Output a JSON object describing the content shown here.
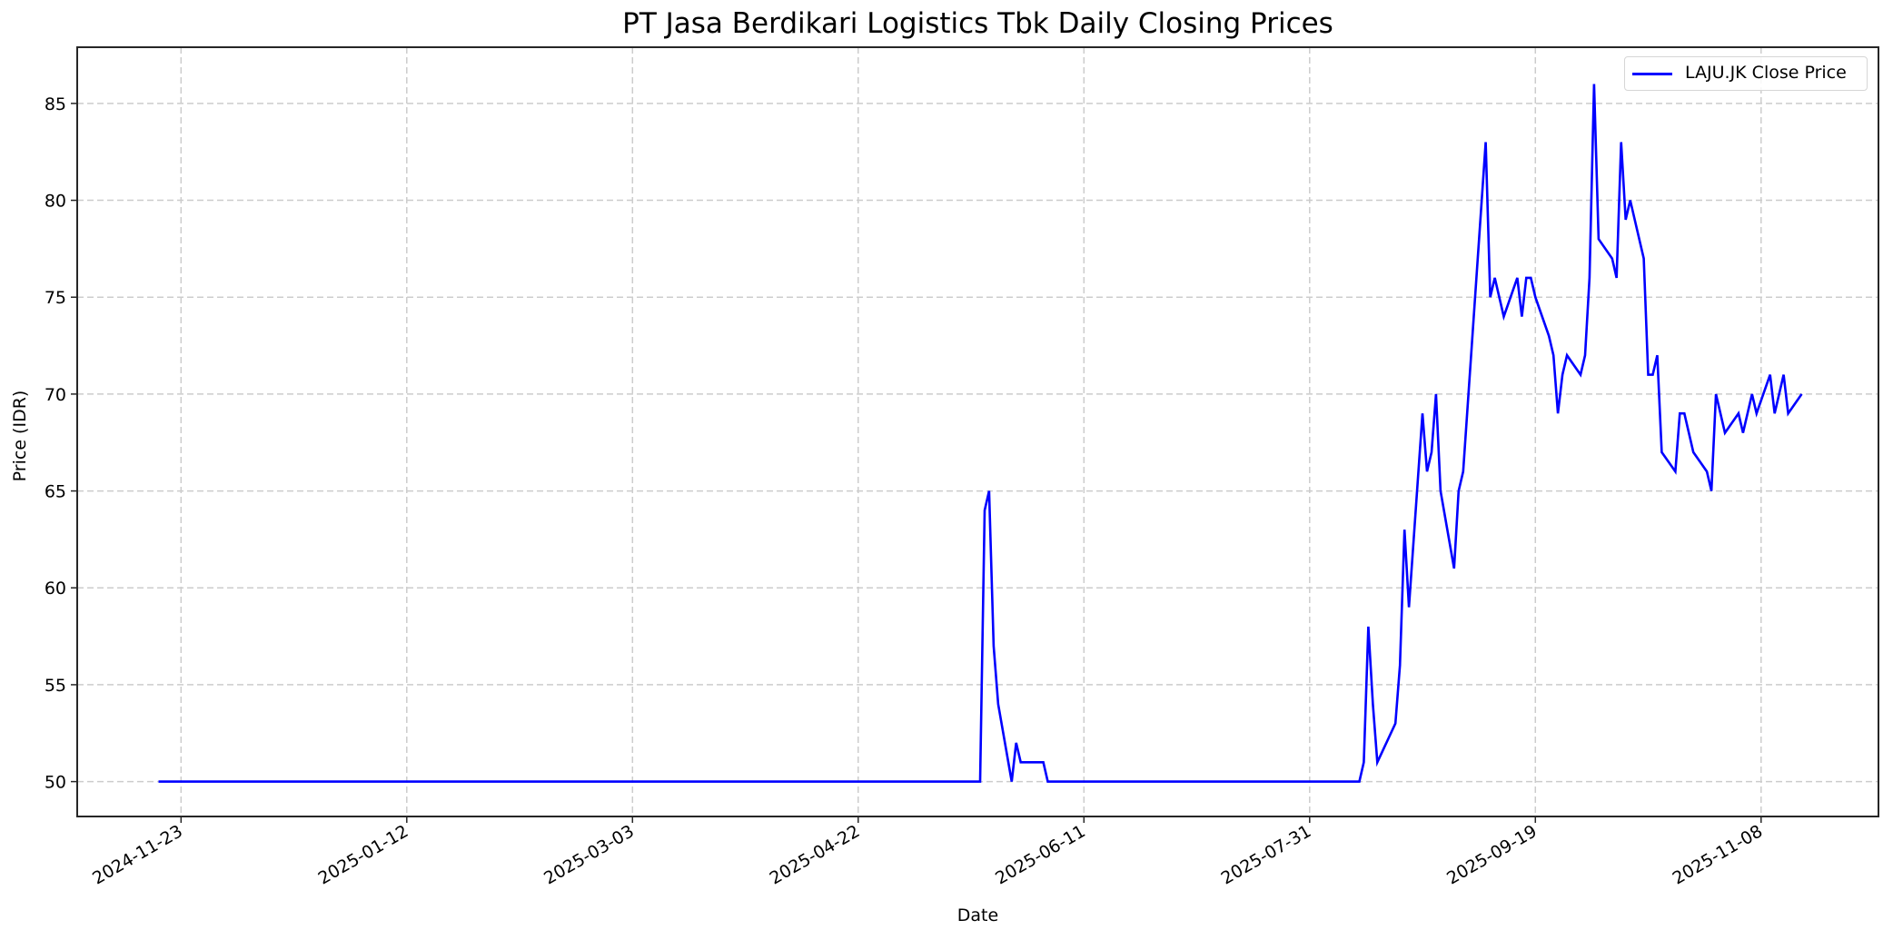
{
  "chart_data": {
    "type": "line",
    "title": "PT Jasa Berdikari Logistics Tbk Daily Closing Prices",
    "xlabel": "Date",
    "ylabel": "Price (IDR)",
    "grid": true,
    "legend_position": "upper right",
    "xlim": [
      "2024-10-31",
      "2025-12-04"
    ],
    "ylim": [
      48.2,
      87.9
    ],
    "x_ticks": [
      "2024-11-23",
      "2025-01-12",
      "2025-03-03",
      "2025-04-22",
      "2025-06-11",
      "2025-07-31",
      "2025-09-19",
      "2025-11-08"
    ],
    "y_ticks": [
      50,
      55,
      60,
      65,
      70,
      75,
      80,
      85
    ],
    "series": [
      {
        "name": "LAJU.JK Close Price",
        "color": "#0000ff",
        "points": [
          [
            "2024-11-18",
            50
          ],
          [
            "2025-05-19",
            50
          ],
          [
            "2025-05-20",
            64
          ],
          [
            "2025-05-21",
            65
          ],
          [
            "2025-05-22",
            57
          ],
          [
            "2025-05-23",
            54
          ],
          [
            "2025-05-26",
            50
          ],
          [
            "2025-05-27",
            52
          ],
          [
            "2025-05-28",
            51
          ],
          [
            "2025-06-02",
            51
          ],
          [
            "2025-06-03",
            50
          ],
          [
            "2025-08-11",
            50
          ],
          [
            "2025-08-12",
            51
          ],
          [
            "2025-08-13",
            58
          ],
          [
            "2025-08-14",
            54
          ],
          [
            "2025-08-15",
            51
          ],
          [
            "2025-08-19",
            53
          ],
          [
            "2025-08-20",
            56
          ],
          [
            "2025-08-21",
            63
          ],
          [
            "2025-08-22",
            59
          ],
          [
            "2025-08-25",
            69
          ],
          [
            "2025-08-26",
            66
          ],
          [
            "2025-08-27",
            67
          ],
          [
            "2025-08-28",
            70
          ],
          [
            "2025-08-29",
            65
          ],
          [
            "2025-09-01",
            61
          ],
          [
            "2025-09-02",
            65
          ],
          [
            "2025-09-03",
            66
          ],
          [
            "2025-09-08",
            83
          ],
          [
            "2025-09-09",
            75
          ],
          [
            "2025-09-10",
            76
          ],
          [
            "2025-09-12",
            74
          ],
          [
            "2025-09-15",
            76
          ],
          [
            "2025-09-16",
            74
          ],
          [
            "2025-09-17",
            76
          ],
          [
            "2025-09-18",
            76
          ],
          [
            "2025-09-19",
            75
          ],
          [
            "2025-09-22",
            73
          ],
          [
            "2025-09-23",
            72
          ],
          [
            "2025-09-24",
            69
          ],
          [
            "2025-09-25",
            71
          ],
          [
            "2025-09-26",
            72
          ],
          [
            "2025-09-29",
            71
          ],
          [
            "2025-09-30",
            72
          ],
          [
            "2025-10-01",
            76
          ],
          [
            "2025-10-02",
            86
          ],
          [
            "2025-10-03",
            78
          ],
          [
            "2025-10-06",
            77
          ],
          [
            "2025-10-07",
            76
          ],
          [
            "2025-10-08",
            83
          ],
          [
            "2025-10-09",
            79
          ],
          [
            "2025-10-10",
            80
          ],
          [
            "2025-10-13",
            77
          ],
          [
            "2025-10-14",
            71
          ],
          [
            "2025-10-15",
            71
          ],
          [
            "2025-10-16",
            72
          ],
          [
            "2025-10-17",
            67
          ],
          [
            "2025-10-20",
            66
          ],
          [
            "2025-10-21",
            69
          ],
          [
            "2025-10-22",
            69
          ],
          [
            "2025-10-24",
            67
          ],
          [
            "2025-10-27",
            66
          ],
          [
            "2025-10-28",
            65
          ],
          [
            "2025-10-29",
            70
          ],
          [
            "2025-10-31",
            68
          ],
          [
            "2025-11-03",
            69
          ],
          [
            "2025-11-04",
            68
          ],
          [
            "2025-11-06",
            70
          ],
          [
            "2025-11-07",
            69
          ],
          [
            "2025-11-10",
            71
          ],
          [
            "2025-11-11",
            69
          ],
          [
            "2025-11-13",
            71
          ],
          [
            "2025-11-14",
            69
          ],
          [
            "2025-11-17",
            70
          ]
        ]
      }
    ]
  },
  "legend": {
    "label": "LAJU.JK Close Price"
  },
  "colors": {
    "line": "#0000ff",
    "grid": "#cccccc",
    "axis": "#262626"
  }
}
